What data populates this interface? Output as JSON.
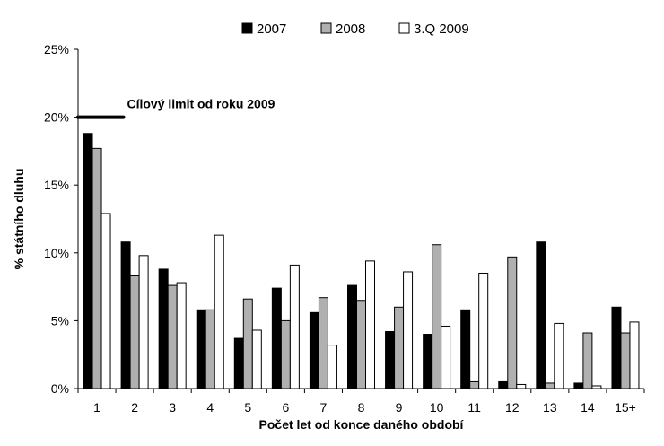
{
  "chart_data": {
    "type": "bar",
    "xlabel": "Počet let od konce daného období",
    "ylabel": "% státního dluhu",
    "ylim": [
      0,
      25
    ],
    "yticks": [
      0,
      5,
      10,
      15,
      20,
      25
    ],
    "ytick_labels": [
      "0%",
      "5%",
      "10%",
      "15%",
      "20%",
      "25%"
    ],
    "grid": false,
    "legend_position": "top",
    "categories": [
      "1",
      "2",
      "3",
      "4",
      "5",
      "6",
      "7",
      "8",
      "9",
      "10",
      "11",
      "12",
      "13",
      "14",
      "15+"
    ],
    "series": [
      {
        "name": "2007",
        "color": "#000000",
        "values": [
          18.8,
          10.8,
          8.8,
          5.8,
          3.7,
          7.4,
          5.6,
          7.6,
          4.2,
          4.0,
          5.8,
          0.5,
          10.8,
          0.4,
          6.0
        ]
      },
      {
        "name": "2008",
        "color": "#b0b0b0",
        "values": [
          17.7,
          8.3,
          7.6,
          5.8,
          6.6,
          5.0,
          6.7,
          6.5,
          6.0,
          10.6,
          0.5,
          9.7,
          0.4,
          4.1,
          4.1
        ]
      },
      {
        "name": "3.Q 2009",
        "color": "#ffffff",
        "values": [
          12.9,
          9.8,
          7.8,
          11.3,
          4.3,
          9.1,
          3.2,
          9.4,
          8.6,
          4.6,
          8.5,
          0.3,
          4.8,
          0.2,
          4.9
        ]
      }
    ],
    "annotation": {
      "text": "Cílový limit od roku 2009",
      "value": 20,
      "x_from": "1",
      "x_to": "2"
    }
  }
}
